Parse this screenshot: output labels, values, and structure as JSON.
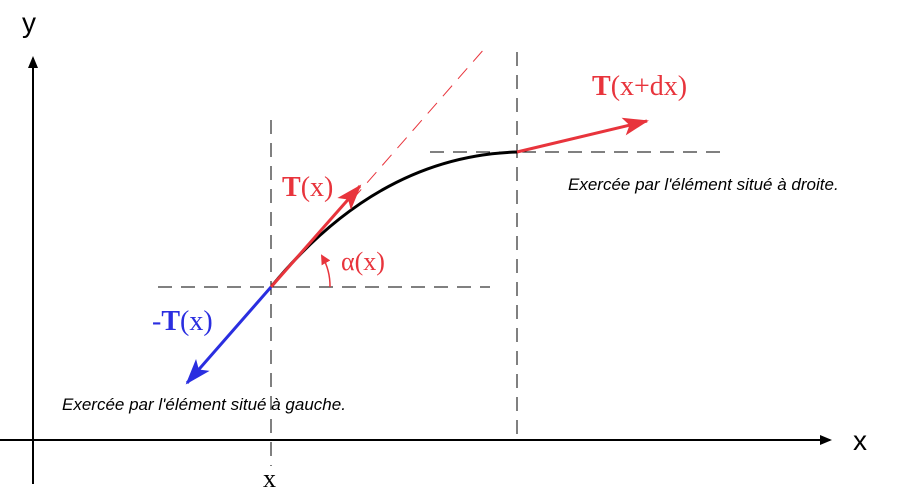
{
  "axes": {
    "x_label": "x",
    "y_label": "y",
    "x_tick": "x"
  },
  "vectors": {
    "tension_right": {
      "bold": "T",
      "arg": "(x+dx)"
    },
    "tension_mid": {
      "bold": "T",
      "arg": "(x)"
    },
    "tension_left": {
      "sign": "-",
      "bold": "T",
      "arg": "(x)"
    }
  },
  "angle_label": "α(x)",
  "notes": {
    "right": "Exercée par l'élément situé à droite.",
    "left": "Exercée par l'élément situé à gauche."
  },
  "colors": {
    "red": "#e8343c",
    "blue": "#2a2ee0",
    "black": "#000000"
  }
}
